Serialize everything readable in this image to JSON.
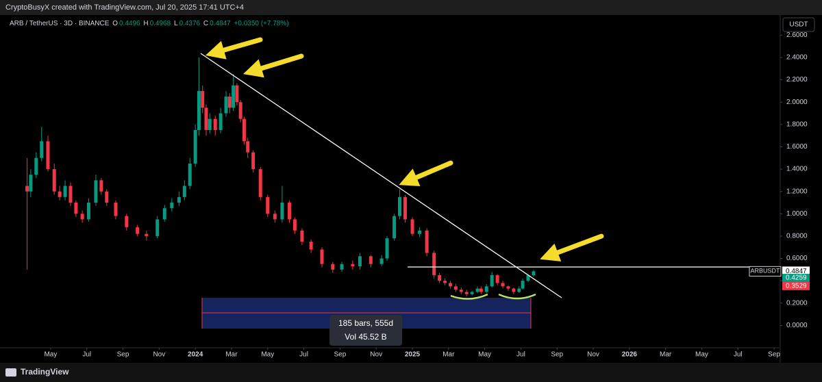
{
  "header": {
    "credit": "CryptoBusyX created with TradingView.com, Jul 20, 2025 17:41 UTC+4",
    "symbol": "ARB / TetherUS · 3D · BINANCE",
    "o_key": "O",
    "h_key": "H",
    "l_key": "L",
    "c_key": "C",
    "change": "+0.0350 (+7.78%)",
    "currency": "USDT"
  },
  "chart_data": {
    "type": "candlestick",
    "ticker": "ARBUSDT",
    "up_color": "#089981",
    "down_color": "#f23645",
    "grid": false,
    "xlim": [
      2.2,
      45.3
    ],
    "xticks": [
      {
        "value": 5,
        "label": "May"
      },
      {
        "value": 7,
        "label": "Jul"
      },
      {
        "value": 9,
        "label": "Sep"
      },
      {
        "value": 11,
        "label": "Nov"
      },
      {
        "value": 13,
        "label": "2024"
      },
      {
        "value": 15,
        "label": "Mar"
      },
      {
        "value": 17,
        "label": "May"
      },
      {
        "value": 19,
        "label": "Jul"
      },
      {
        "value": 21,
        "label": "Sep"
      },
      {
        "value": 23,
        "label": "Nov"
      },
      {
        "value": 25,
        "label": "2025"
      },
      {
        "value": 27,
        "label": "Mar"
      },
      {
        "value": 29,
        "label": "May"
      },
      {
        "value": 31,
        "label": "Jul"
      },
      {
        "value": 33,
        "label": "Sep"
      },
      {
        "value": 35,
        "label": "Nov"
      },
      {
        "value": 37,
        "label": "2026"
      },
      {
        "value": 39,
        "label": "Mar"
      },
      {
        "value": 41,
        "label": "May"
      },
      {
        "value": 43,
        "label": "Jul"
      },
      {
        "value": 45,
        "label": "Sep"
      }
    ],
    "ylim": [
      -0.2,
      2.78
    ],
    "yticks": [
      {
        "value": 0,
        "label": "0.0000"
      },
      {
        "value": 0.2,
        "label": "0.2000"
      },
      {
        "value": 0.4,
        "label": "0.4000"
      },
      {
        "value": 0.6,
        "label": "0.6000"
      },
      {
        "value": 0.8,
        "label": "0.8000"
      },
      {
        "value": 1,
        "label": "1.0000"
      },
      {
        "value": 1.2,
        "label": "1.2000"
      },
      {
        "value": 1.4,
        "label": "1.4000"
      },
      {
        "value": 1.6,
        "label": "1.6000"
      },
      {
        "value": 1.8,
        "label": "1.8000"
      },
      {
        "value": 2,
        "label": "2.0000"
      },
      {
        "value": 2.2,
        "label": "2.2000"
      },
      {
        "value": 2.4,
        "label": "2.4000"
      },
      {
        "value": 2.6,
        "label": "2.6000"
      }
    ],
    "x": [
      3.7,
      3.9,
      4.2,
      4.5,
      4.85,
      5.2,
      5.5,
      5.8,
      6.1,
      6.4,
      6.75,
      7.1,
      7.5,
      7.8,
      8.1,
      8.6,
      9.2,
      9.8,
      10.3,
      10.9,
      11.3,
      11.7,
      12.1,
      12.4,
      12.7,
      13,
      13.2,
      13.4,
      13.6,
      13.8,
      14.1,
      14.4,
      14.7,
      14.9,
      15.1,
      15.3,
      15.5,
      15.7,
      15.9,
      16.2,
      16.6,
      17,
      17.4,
      17.8,
      18.2,
      18.5,
      18.9,
      19.4,
      20,
      20.6,
      21.1,
      21.7,
      22.1,
      22.7,
      23.3,
      23.6,
      24,
      24.3,
      24.6,
      25,
      25.4,
      25.8,
      26.2,
      26.5,
      26.8,
      27.1,
      27.4,
      27.7,
      28,
      28.3,
      28.6,
      28.8,
      29.1,
      29.4,
      29.7,
      30,
      30.3,
      30.6,
      30.9,
      31.1,
      31.4,
      31.7
    ],
    "open": [
      1.25,
      1.2,
      1.35,
      1.5,
      1.65,
      1.4,
      1.2,
      1.15,
      1.25,
      1.1,
      1.0,
      0.95,
      1.1,
      1.3,
      1.2,
      1.1,
      0.98,
      0.88,
      0.82,
      0.8,
      0.95,
      1.05,
      1.1,
      1.15,
      1.25,
      1.45,
      1.75,
      2.1,
      1.95,
      1.75,
      1.85,
      1.75,
      1.9,
      2.05,
      1.95,
      2.15,
      2.0,
      1.85,
      1.65,
      1.55,
      1.4,
      1.15,
      1.0,
      0.95,
      1.1,
      0.95,
      0.85,
      0.75,
      0.68,
      0.55,
      0.5,
      0.55,
      0.53,
      0.62,
      0.55,
      0.6,
      0.78,
      0.98,
      1.15,
      0.95,
      0.82,
      0.85,
      0.65,
      0.45,
      0.4,
      0.38,
      0.35,
      0.32,
      0.3,
      0.28,
      0.3,
      0.33,
      0.3,
      0.35,
      0.45,
      0.38,
      0.35,
      0.33,
      0.3,
      0.33,
      0.4,
      0.4496
    ],
    "high": [
      1.5,
      1.4,
      1.55,
      1.78,
      1.7,
      1.45,
      1.25,
      1.3,
      1.28,
      1.12,
      1.03,
      1.14,
      1.35,
      1.32,
      1.22,
      1.12,
      1.0,
      0.9,
      0.85,
      0.98,
      1.08,
      1.14,
      1.2,
      1.3,
      1.5,
      1.8,
      2.4,
      2.15,
      1.98,
      1.9,
      1.88,
      1.95,
      2.1,
      2.08,
      2.25,
      2.17,
      2.02,
      1.87,
      1.68,
      1.57,
      1.42,
      1.17,
      1.03,
      1.25,
      1.12,
      0.97,
      0.87,
      0.77,
      0.7,
      0.57,
      0.57,
      0.58,
      0.65,
      0.63,
      0.63,
      0.8,
      1.0,
      1.22,
      1.17,
      0.97,
      0.88,
      0.87,
      0.67,
      0.47,
      0.42,
      0.4,
      0.37,
      0.34,
      0.32,
      0.31,
      0.35,
      0.35,
      0.37,
      0.48,
      0.46,
      0.4,
      0.36,
      0.34,
      0.35,
      0.42,
      0.46,
      0.4968
    ],
    "low": [
      0.5,
      1.15,
      1.32,
      1.47,
      1.38,
      1.17,
      1.12,
      1.12,
      1.07,
      0.97,
      0.92,
      0.93,
      1.07,
      1.17,
      1.07,
      0.95,
      0.85,
      0.8,
      0.76,
      0.78,
      0.93,
      1.02,
      1.07,
      1.12,
      1.22,
      1.42,
      1.7,
      1.9,
      1.7,
      1.72,
      1.7,
      1.72,
      1.87,
      1.9,
      1.92,
      1.97,
      1.82,
      1.62,
      1.5,
      1.37,
      1.12,
      0.97,
      0.92,
      0.92,
      0.92,
      0.82,
      0.72,
      0.65,
      0.52,
      0.47,
      0.48,
      0.5,
      0.5,
      0.52,
      0.53,
      0.58,
      0.76,
      0.95,
      0.92,
      0.8,
      0.79,
      0.62,
      0.42,
      0.38,
      0.36,
      0.33,
      0.3,
      0.28,
      0.26,
      0.27,
      0.29,
      0.28,
      0.29,
      0.34,
      0.36,
      0.33,
      0.31,
      0.28,
      0.29,
      0.32,
      0.39,
      0.4376
    ],
    "close": [
      1.2,
      1.35,
      1.5,
      1.65,
      1.4,
      1.2,
      1.15,
      1.25,
      1.1,
      1.0,
      0.95,
      1.1,
      1.3,
      1.2,
      1.1,
      0.98,
      0.88,
      0.82,
      0.8,
      0.95,
      1.05,
      1.1,
      1.15,
      1.25,
      1.45,
      1.75,
      2.1,
      1.95,
      1.75,
      1.85,
      1.75,
      1.9,
      2.05,
      1.95,
      2.15,
      2.0,
      1.85,
      1.65,
      1.55,
      1.4,
      1.15,
      1.0,
      0.95,
      1.1,
      0.95,
      0.85,
      0.75,
      0.68,
      0.55,
      0.5,
      0.55,
      0.53,
      0.62,
      0.55,
      0.6,
      0.78,
      0.98,
      1.15,
      0.95,
      0.82,
      0.85,
      0.65,
      0.45,
      0.4,
      0.38,
      0.35,
      0.32,
      0.3,
      0.28,
      0.3,
      0.33,
      0.3,
      0.35,
      0.45,
      0.38,
      0.35,
      0.33,
      0.3,
      0.33,
      0.4,
      0.4496,
      0.4847
    ],
    "markers": [
      {
        "value": 0.4259,
        "color": "#089981"
      },
      {
        "value": 0.3529,
        "color": "#f23645"
      }
    ],
    "range_bars": "185 bars, 555d",
    "range_volume": "Vol 45.52 B"
  },
  "footer": {
    "brand": "TradingView"
  }
}
